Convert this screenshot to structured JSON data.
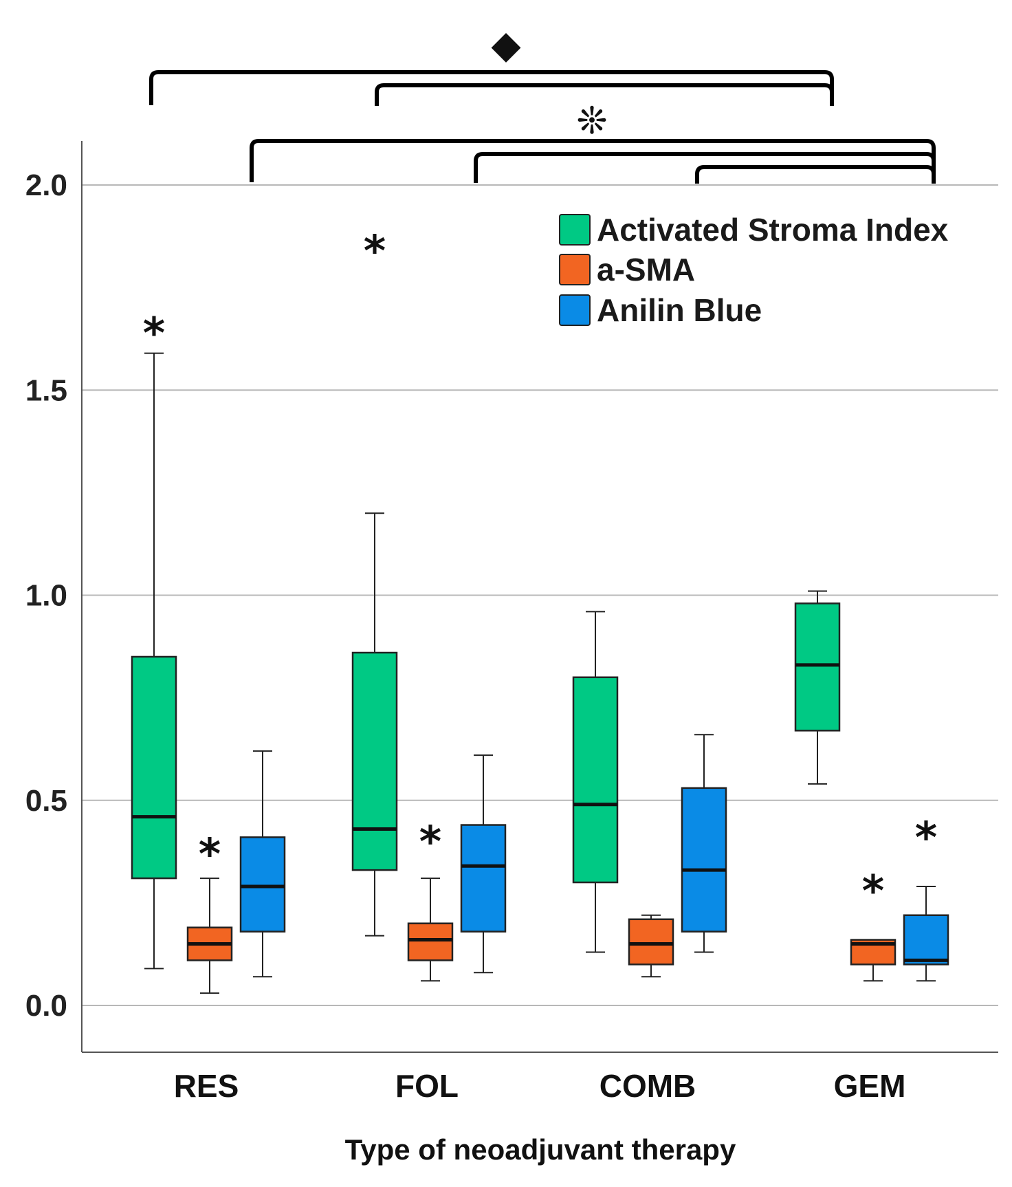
{
  "chart_data": {
    "type": "boxplot",
    "xlabel": "Type of neoadjuvant therapy",
    "ylabel": "",
    "ylim": [
      -0.11,
      2.11
    ],
    "yticks": [
      0.0,
      0.5,
      1.0,
      1.5,
      2.0
    ],
    "ytick_labels": [
      "0.0",
      "0.5",
      "1.0",
      "1.5",
      "2.0"
    ],
    "grid": "horizontal",
    "legend_position": "top-right",
    "categories": [
      "RES",
      "FOL",
      "COMB",
      "GEM"
    ],
    "series": [
      {
        "name": "Activated Stroma Index",
        "color": "#00c984",
        "boxes": [
          {
            "category": "RES",
            "whisker_low": 0.09,
            "q1": 0.31,
            "median": 0.46,
            "q3": 0.85,
            "whisker_high": 1.59,
            "outlier_marker": "*",
            "outlier_y": 1.66
          },
          {
            "category": "FOL",
            "whisker_low": 0.17,
            "q1": 0.33,
            "median": 0.43,
            "q3": 0.86,
            "whisker_high": 1.2,
            "outlier_marker": "*",
            "outlier_y": 1.86
          },
          {
            "category": "COMB",
            "whisker_low": 0.13,
            "q1": 0.3,
            "median": 0.49,
            "q3": 0.8,
            "whisker_high": 0.96,
            "outlier_marker": "",
            "outlier_y": null
          },
          {
            "category": "GEM",
            "whisker_low": 0.54,
            "q1": 0.67,
            "median": 0.83,
            "q3": 0.98,
            "whisker_high": 1.01,
            "outlier_marker": "",
            "outlier_y": null
          }
        ]
      },
      {
        "name": "a-SMA",
        "color": "#f26522",
        "boxes": [
          {
            "category": "RES",
            "whisker_low": 0.03,
            "q1": 0.11,
            "median": 0.15,
            "q3": 0.19,
            "whisker_high": 0.31,
            "outlier_marker": "*",
            "outlier_y": 0.39
          },
          {
            "category": "FOL",
            "whisker_low": 0.06,
            "q1": 0.11,
            "median": 0.16,
            "q3": 0.2,
            "whisker_high": 0.31,
            "outlier_marker": "*",
            "outlier_y": 0.42
          },
          {
            "category": "COMB",
            "whisker_low": 0.07,
            "q1": 0.1,
            "median": 0.15,
            "q3": 0.21,
            "whisker_high": 0.22,
            "outlier_marker": "",
            "outlier_y": null
          },
          {
            "category": "GEM",
            "whisker_low": 0.06,
            "q1": 0.1,
            "median": 0.15,
            "q3": 0.16,
            "whisker_high": 0.16,
            "outlier_marker": "*",
            "outlier_y": 0.3
          }
        ]
      },
      {
        "name": "Anilin Blue",
        "color": "#0a8be6",
        "boxes": [
          {
            "category": "RES",
            "whisker_low": 0.07,
            "q1": 0.18,
            "median": 0.29,
            "q3": 0.41,
            "whisker_high": 0.62,
            "outlier_marker": "",
            "outlier_y": null
          },
          {
            "category": "FOL",
            "whisker_low": 0.08,
            "q1": 0.18,
            "median": 0.34,
            "q3": 0.44,
            "whisker_high": 0.61,
            "outlier_marker": "",
            "outlier_y": null
          },
          {
            "category": "COMB",
            "whisker_low": 0.13,
            "q1": 0.18,
            "median": 0.33,
            "q3": 0.53,
            "whisker_high": 0.66,
            "outlier_marker": "",
            "outlier_y": null
          },
          {
            "category": "GEM",
            "whisker_low": 0.06,
            "q1": 0.1,
            "median": 0.11,
            "q3": 0.22,
            "whisker_high": 0.29,
            "outlier_marker": "*",
            "outlier_y": 0.43
          }
        ]
      }
    ],
    "significance_annotations": [
      {
        "symbol": "◆",
        "description": "Activated Stroma Index: RES vs GEM and FOL vs GEM",
        "pairs": [
          [
            "RES",
            "GEM"
          ],
          [
            "FOL",
            "GEM"
          ]
        ]
      },
      {
        "symbol": "❊",
        "description": "Anilin Blue: RES vs GEM, FOL vs GEM and COMB vs GEM",
        "pairs": [
          [
            "RES",
            "GEM"
          ],
          [
            "FOL",
            "GEM"
          ],
          [
            "COMB",
            "GEM"
          ]
        ]
      }
    ]
  }
}
